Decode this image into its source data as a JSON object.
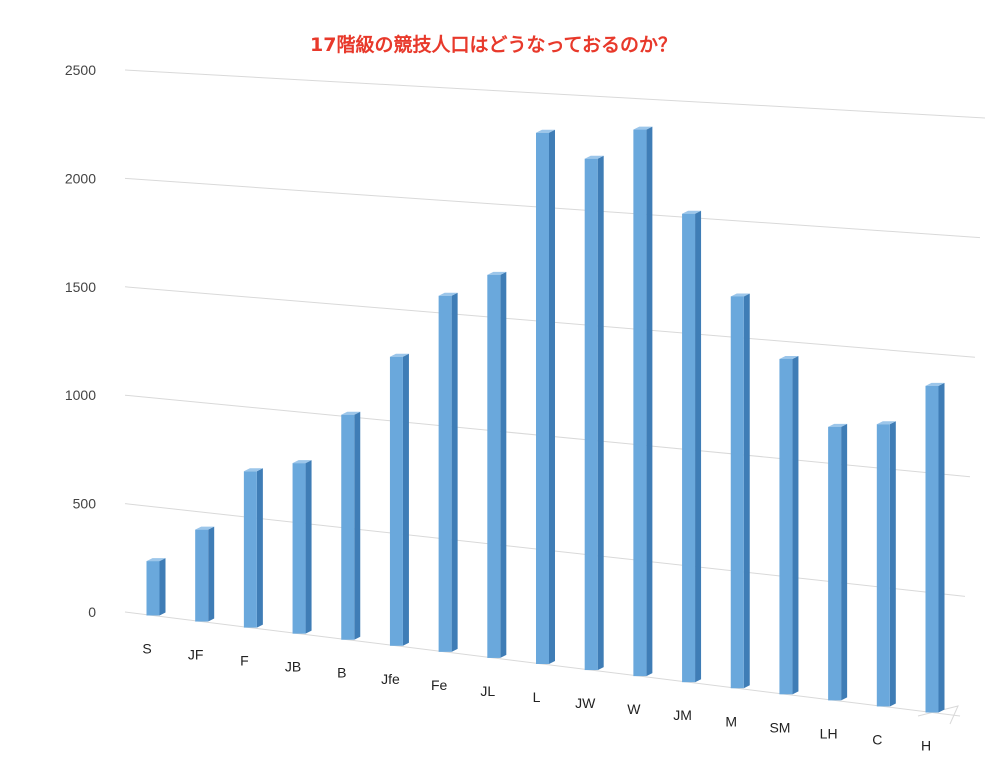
{
  "chart_data": {
    "type": "bar",
    "title": "17階級の競技人口はどうなっておるのか？",
    "categories": [
      "S",
      "JF",
      "F",
      "JB",
      "B",
      "Jfe",
      "Fe",
      "JL",
      "L",
      "JW",
      "W",
      "JM",
      "M",
      "SM",
      "LH",
      "C",
      "H"
    ],
    "values": [
      250,
      420,
      710,
      770,
      1010,
      1290,
      1580,
      1690,
      2330,
      2230,
      2370,
      2020,
      1680,
      1430,
      1160,
      1190,
      1370
    ],
    "ylim": [
      0,
      2500
    ],
    "yticks": [
      "0",
      "500",
      "1000",
      "1500",
      "2000",
      "2500"
    ],
    "xlabel": "",
    "ylabel": "",
    "grid": true,
    "legend": "none",
    "colors": {
      "bar_front": "#6aa8dc",
      "bar_side": "#3f7db6",
      "bar_top": "#9cc6ea",
      "grid": "#d9d9d9",
      "title": "#e8392b"
    }
  }
}
